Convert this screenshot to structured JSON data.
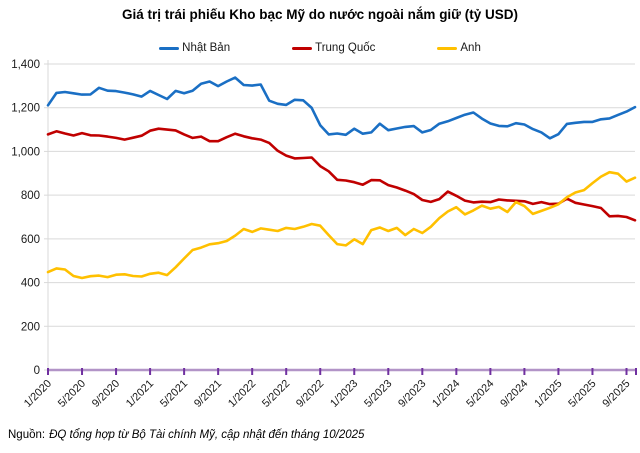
{
  "title": "Giá trị trái phiếu Kho bạc Mỹ do nước ngoài nắm giữ (tỷ USD)",
  "footer": {
    "prefix": "Nguồn:",
    "text": "ĐQ tổng hợp từ Bộ Tài chính Mỹ, cập nhật đến tháng 10/2025"
  },
  "chart_data": {
    "type": "line",
    "title": "Giá trị trái phiếu Kho bạc Mỹ do nước ngoài nắm giữ (tỷ USD)",
    "xlabel": "",
    "ylabel": "",
    "ylim": [
      0,
      1400
    ],
    "y_tick_step": 200,
    "grid": true,
    "legend_position": "top",
    "x_unit": "month",
    "x_range": [
      "1/2020",
      "10/2025"
    ],
    "x_tick_labels": [
      "1/2020",
      "5/2020",
      "9/2020",
      "1/2021",
      "5/2021",
      "9/2021",
      "1/2022",
      "5/2022",
      "9/2022",
      "1/2023",
      "5/2023",
      "9/2023",
      "1/2024",
      "5/2024",
      "9/2024",
      "1/2025",
      "5/2025",
      "9/2025"
    ],
    "x_tick_month_indices": [
      0,
      4,
      8,
      12,
      16,
      20,
      24,
      28,
      32,
      36,
      40,
      44,
      48,
      52,
      56,
      60,
      64,
      68
    ],
    "colors": {
      "grid": "#d9d9d9",
      "y_axis": "#d9d9d9",
      "x_axis_line": "#b294c7",
      "x_axis_tick": "#7030a0",
      "tick_text": "#1a1a1a"
    },
    "series": [
      {
        "key": "japan",
        "name": "Nhật Bản",
        "color": "#1a6fc4",
        "values": [
          1211,
          1268,
          1272,
          1266,
          1260,
          1261,
          1291,
          1278,
          1276,
          1269,
          1261,
          1251,
          1277,
          1258,
          1240,
          1277,
          1266,
          1278,
          1310,
          1320,
          1299,
          1320,
          1338,
          1304,
          1301,
          1306,
          1232,
          1218,
          1213,
          1236,
          1234,
          1199,
          1120,
          1078,
          1082,
          1076,
          1104,
          1081,
          1087,
          1127,
          1097,
          1105,
          1112,
          1116,
          1087,
          1098,
          1127,
          1138,
          1153,
          1168,
          1178,
          1150,
          1128,
          1117,
          1115,
          1129,
          1123,
          1102,
          1087,
          1060,
          1079,
          1126,
          1131,
          1135,
          1135,
          1147,
          1151,
          1167,
          1182,
          1203
        ]
      },
      {
        "key": "china",
        "name": "Trung Quốc",
        "color": "#c00000",
        "values": [
          1078,
          1092,
          1082,
          1073,
          1084,
          1074,
          1073,
          1068,
          1062,
          1054,
          1063,
          1072,
          1095,
          1104,
          1100,
          1096,
          1078,
          1062,
          1068,
          1047,
          1047,
          1065,
          1081,
          1069,
          1060,
          1054,
          1039,
          1003,
          981,
          968,
          970,
          972,
          933,
          909,
          870,
          867,
          859,
          848,
          869,
          868,
          846,
          835,
          821,
          805,
          778,
          769,
          782,
          816,
          797,
          775,
          767,
          770,
          768,
          780,
          776,
          774,
          772,
          760,
          768,
          759,
          761,
          784,
          765,
          757,
          750,
          741,
          703,
          705,
          700,
          685
        ]
      },
      {
        "key": "uk",
        "name": "Anh",
        "color": "#ffc000",
        "values": [
          448,
          465,
          460,
          430,
          421,
          429,
          432,
          425,
          436,
          438,
          430,
          428,
          440,
          445,
          434,
          470,
          510,
          549,
          560,
          575,
          580,
          590,
          615,
          645,
          632,
          648,
          642,
          636,
          650,
          645,
          655,
          668,
          660,
          617,
          576,
          570,
          598,
          576,
          640,
          652,
          636,
          650,
          617,
          645,
          627,
          655,
          695,
          725,
          745,
          712,
          730,
          752,
          738,
          746,
          723,
          768,
          750,
          714,
          728,
          742,
          758,
          790,
          812,
          823,
          855,
          885,
          905,
          898,
          862,
          880
        ]
      }
    ]
  }
}
